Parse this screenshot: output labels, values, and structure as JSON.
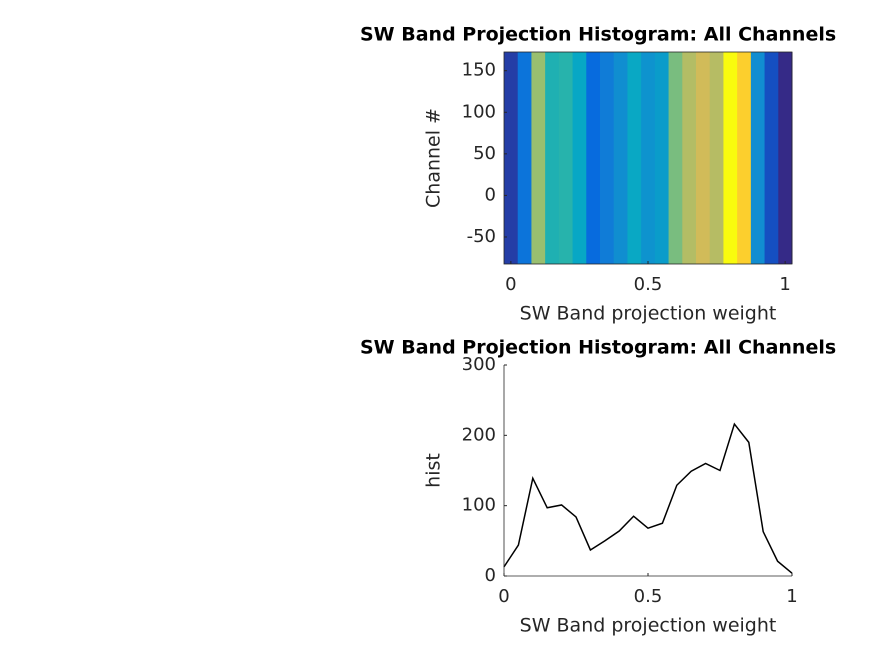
{
  "chart_data": [
    {
      "type": "image",
      "title": "SW Band Projection Histogram: All Channels",
      "xlabel": "SW Band projection weight",
      "ylabel": "Channel #",
      "x": [
        0,
        0.05,
        0.1,
        0.15,
        0.2,
        0.25,
        0.3,
        0.35,
        0.4,
        0.45,
        0.5,
        0.55,
        0.6,
        0.65,
        0.7,
        0.75,
        0.8,
        0.85,
        0.9,
        0.95,
        1
      ],
      "values": [
        13,
        44,
        139,
        97,
        101,
        84,
        37,
        50,
        64,
        85,
        68,
        75,
        129,
        149,
        160,
        150,
        216,
        190,
        63,
        21,
        4
      ],
      "xlim": [
        -0.025,
        1.025
      ],
      "xticks": [
        0,
        0.5,
        1
      ],
      "ylim": [
        -82.5,
        172.5
      ],
      "yticks": [
        -50,
        0,
        50,
        100,
        150
      ],
      "colormap": [
        "#352a87",
        "#0363e1",
        "#1485d4",
        "#06a7c6",
        "#38b99e",
        "#92bf73",
        "#d9ba56",
        "#fcce2e",
        "#f9fb0e"
      ]
    },
    {
      "type": "line",
      "title": "SW Band Projection Histogram: All Channels",
      "xlabel": "SW Band projection weight",
      "ylabel": "hist",
      "x": [
        0,
        0.05,
        0.1,
        0.15,
        0.2,
        0.25,
        0.3,
        0.35,
        0.4,
        0.45,
        0.5,
        0.55,
        0.6,
        0.65,
        0.7,
        0.75,
        0.8,
        0.85,
        0.9,
        0.95,
        1
      ],
      "values": [
        13,
        44,
        139,
        97,
        101,
        84,
        37,
        50,
        64,
        85,
        68,
        75,
        129,
        149,
        160,
        150,
        216,
        190,
        63,
        21,
        4
      ],
      "color": "#000000",
      "xlim": [
        0,
        1
      ],
      "xticks": [
        0,
        0.5,
        1
      ],
      "ylim": [
        0,
        300
      ],
      "yticks": [
        0,
        100,
        200,
        300
      ]
    }
  ]
}
